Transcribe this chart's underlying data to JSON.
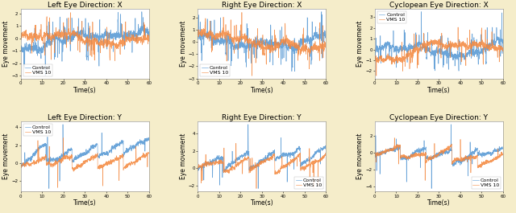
{
  "titles_row1": [
    "Left Eye Direction: X",
    "Right Eye Direction: X",
    "Cyclopean Eye Direction: X"
  ],
  "titles_row2": [
    "Left Eye Direction: Y",
    "Right Eye Direction: Y",
    "Cyclopean Eye Direction: Y"
  ],
  "xlabel": "Time(s)",
  "ylabel": "Eye movement",
  "color_control": "#5B9BD5",
  "color_vms": "#F4863B",
  "legend_labels": [
    "Control",
    "VMS 10"
  ],
  "figure_background": "#F5EDCA",
  "n_points": 1200,
  "seed": 42,
  "title_fontsize": 6.5,
  "axis_label_fontsize": 5.5,
  "tick_fontsize": 4.0,
  "legend_fontsize": 4.5,
  "linewidth": 0.45,
  "alpha_c": 0.9,
  "alpha_v": 0.85
}
